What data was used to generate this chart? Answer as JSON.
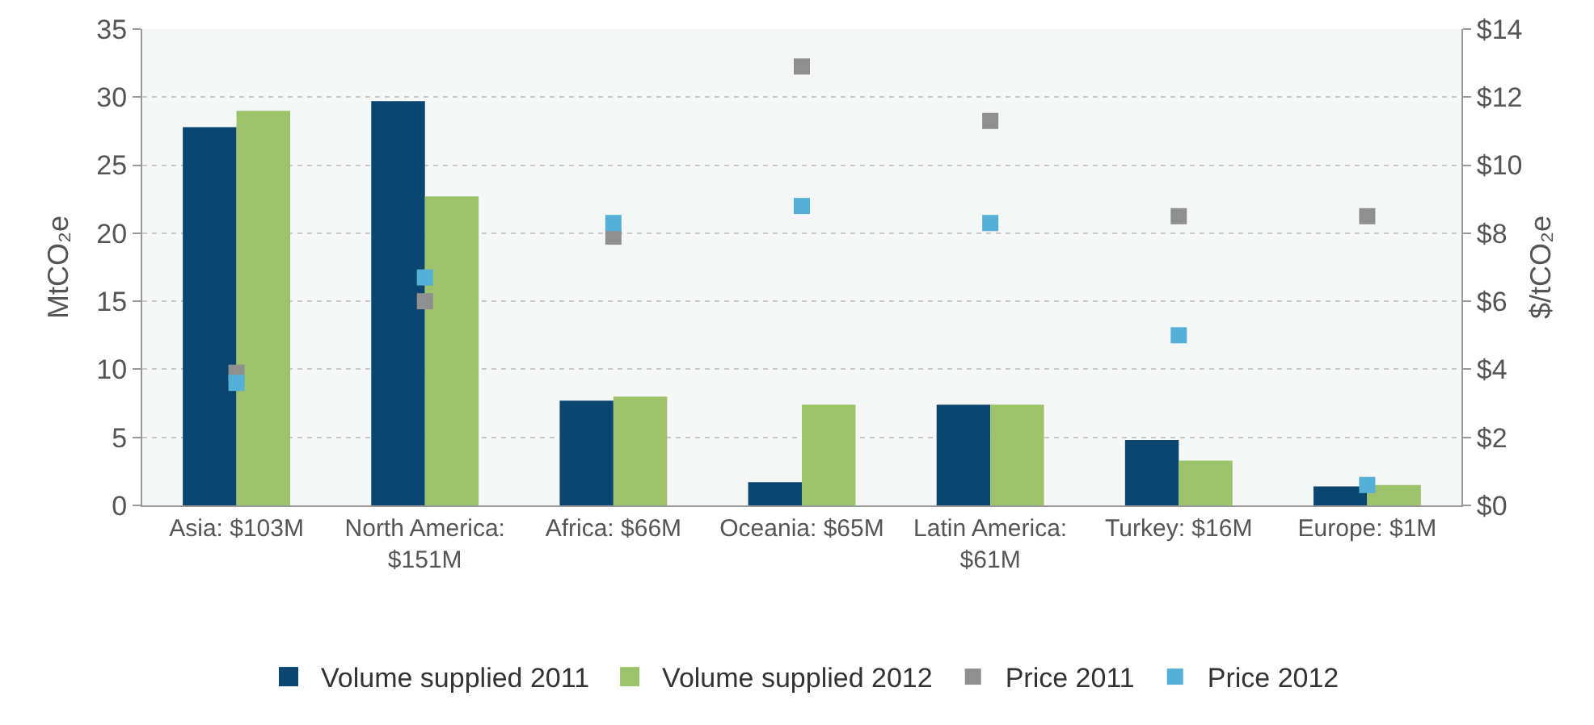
{
  "chart_data": {
    "type": "bar",
    "ylabel": "MtCO₂e",
    "y2label": "$/tCO₂e",
    "categories": [
      "Asia: $103M",
      "North America: $151M",
      "Africa: $66M",
      "Oceania: $65M",
      "Latin America: $61M",
      "Turkey: $16M",
      "Europe: $1M"
    ],
    "series": [
      {
        "name": "Volume supplied 2011",
        "color": "#0a4670",
        "values": [
          27.8,
          29.7,
          7.7,
          1.7,
          7.4,
          4.8,
          1.4
        ]
      },
      {
        "name": "Volume supplied 2012",
        "color": "#9dc36a",
        "values": [
          29.0,
          22.7,
          8.0,
          7.4,
          7.4,
          3.3,
          1.5
        ]
      },
      {
        "name": "Price 2011",
        "type": "scatter",
        "marker": "square",
        "axis": "y2",
        "color": "#8f8f8f",
        "values": [
          3.9,
          6.0,
          7.9,
          12.9,
          11.3,
          8.5,
          8.5
        ]
      },
      {
        "name": "Price 2012",
        "type": "scatter",
        "marker": "square",
        "axis": "y2",
        "color": "#55b0d8",
        "values": [
          3.6,
          6.7,
          8.3,
          8.8,
          8.3,
          5.0,
          0.6
        ]
      }
    ],
    "ylim": [
      0,
      35
    ],
    "yticks": [
      0,
      5,
      10,
      15,
      20,
      25,
      30,
      35
    ],
    "y2lim": [
      0,
      14
    ],
    "y2ticks": [
      {
        "value": 0,
        "label": "$0"
      },
      {
        "value": 2,
        "label": "$2"
      },
      {
        "value": 4,
        "label": "$4"
      },
      {
        "value": 6,
        "label": "$6"
      },
      {
        "value": 8,
        "label": "$8"
      },
      {
        "value": 10,
        "label": "$10"
      },
      {
        "value": 12,
        "label": "$12"
      },
      {
        "value": 14,
        "label": "$14"
      }
    ],
    "grid": "y",
    "legend": "bottom"
  }
}
